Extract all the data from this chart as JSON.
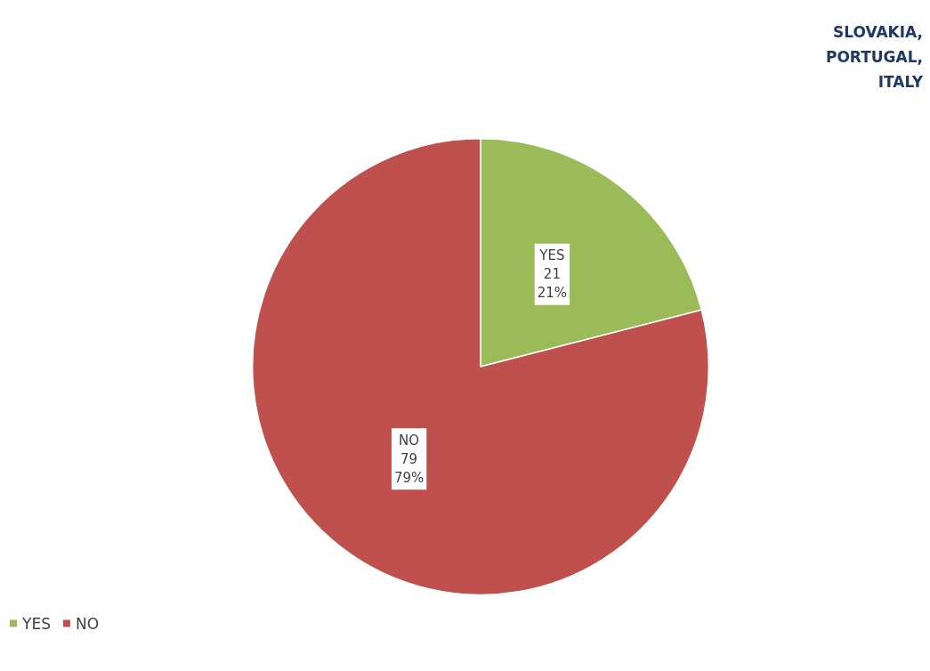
{
  "chart_data": {
    "type": "pie",
    "categories": [
      "YES",
      "NO"
    ],
    "values": [
      21,
      79
    ],
    "colors": [
      "#9bbb59",
      "#c0504d"
    ],
    "value_labels": [
      "21\n21%",
      "79\n79%"
    ],
    "legend": "bottom left",
    "annotations": [
      "SLOVAKIA,\nPORTUGAL,\nITALY"
    ]
  }
}
